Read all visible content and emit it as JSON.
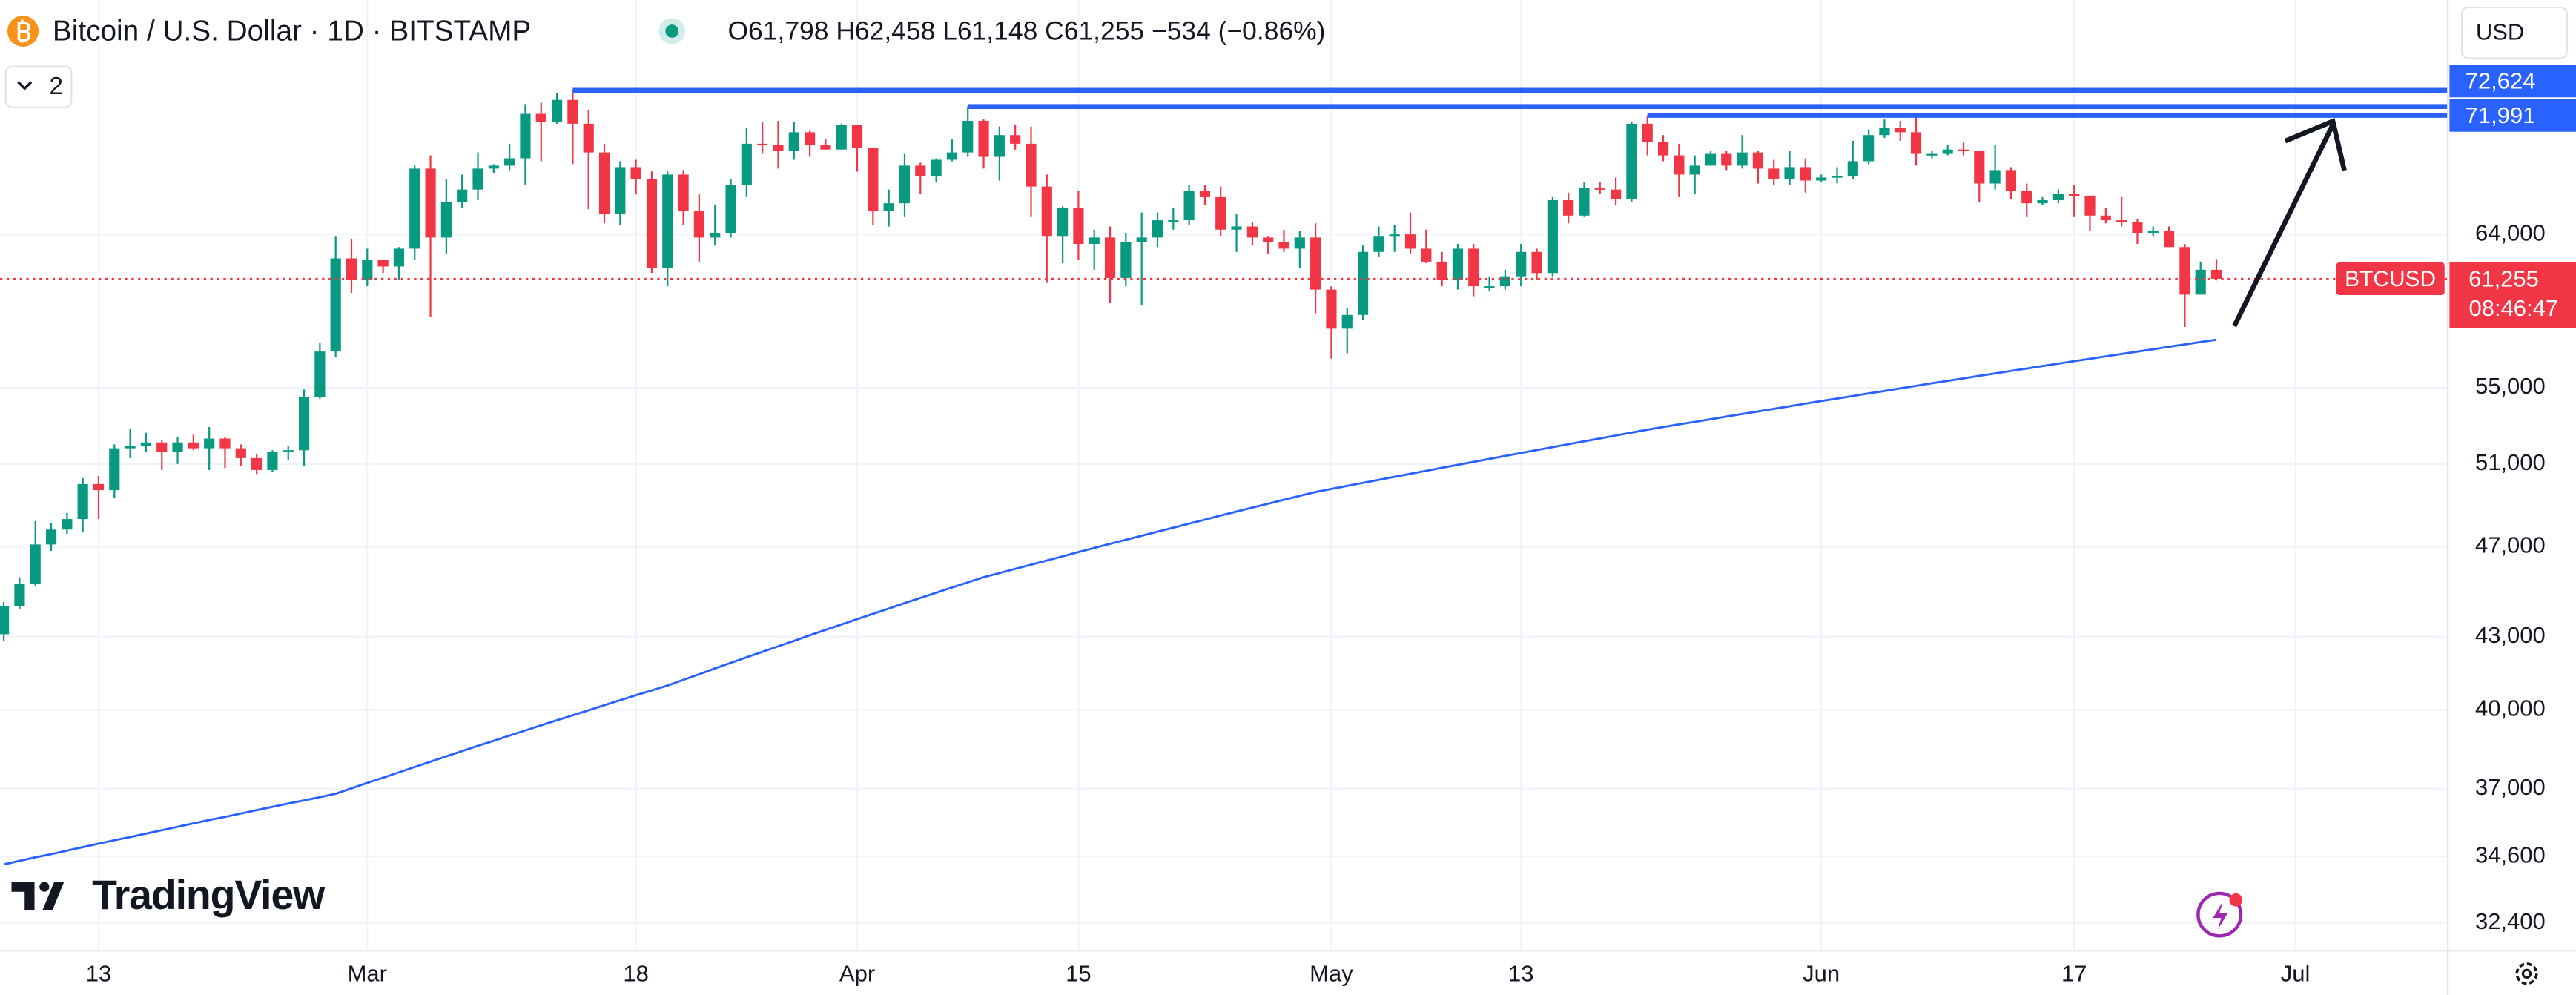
{
  "chart_data": {
    "type": "candlestick",
    "title": "Bitcoin / U.S. Dollar · 1D · BITSTAMP",
    "ohlc_text": "O61,798 H62,458 L61,148 C61,255 −534 (−0.86%)",
    "log": true,
    "grid": true,
    "up_color": "#089981",
    "down_color": "#f23645",
    "ylim": [
      31520,
      80690
    ],
    "yticks": [
      {
        "value": 32400,
        "label": "32,400"
      },
      {
        "value": 34600,
        "label": "34,600"
      },
      {
        "value": 37000,
        "label": "37,000"
      },
      {
        "value": 40000,
        "label": "40,000"
      },
      {
        "value": 43000,
        "label": "43,000"
      },
      {
        "value": 47000,
        "label": "47,000"
      },
      {
        "value": 51000,
        "label": "51,000"
      },
      {
        "value": 55000,
        "label": "55,000"
      },
      {
        "value": 64000,
        "label": "64,000"
      }
    ],
    "categories": [
      null,
      null,
      null,
      null,
      null,
      null,
      "13",
      null,
      null,
      null,
      null,
      null,
      null,
      null,
      null,
      null,
      null,
      null,
      null,
      null,
      null,
      null,
      null,
      "Mar",
      null,
      null,
      null,
      null,
      null,
      null,
      null,
      null,
      null,
      null,
      null,
      null,
      null,
      null,
      null,
      null,
      "18",
      null,
      null,
      null,
      null,
      null,
      null,
      null,
      null,
      null,
      null,
      null,
      null,
      null,
      "Apr",
      null,
      null,
      null,
      null,
      null,
      null,
      null,
      null,
      null,
      null,
      null,
      null,
      null,
      "15",
      null,
      null,
      null,
      null,
      null,
      null,
      null,
      null,
      null,
      null,
      null,
      null,
      null,
      null,
      null,
      "May",
      null,
      null,
      null,
      null,
      null,
      null,
      null,
      null,
      null,
      null,
      null,
      "13",
      null,
      null,
      null,
      null,
      null,
      null,
      null,
      null,
      null,
      null,
      null,
      null,
      null,
      null,
      null,
      null,
      null,
      null,
      "Jun",
      null,
      null,
      null,
      null,
      null,
      null,
      null,
      null,
      null,
      null,
      null,
      null,
      null,
      null,
      null,
      "17",
      null,
      null,
      null,
      null,
      null,
      null,
      null,
      null,
      null,
      null,
      null,
      null,
      null,
      "Jul"
    ],
    "ohlc": [
      [
        43100,
        44500,
        42800,
        44300
      ],
      [
        44300,
        45600,
        44200,
        45300
      ],
      [
        45300,
        48200,
        45200,
        47100
      ],
      [
        47100,
        48100,
        46800,
        47800
      ],
      [
        47800,
        48600,
        47600,
        48300
      ],
      [
        48300,
        50300,
        47700,
        50000
      ],
      [
        50000,
        50400,
        48300,
        49700
      ],
      [
        49700,
        52000,
        49300,
        51800
      ],
      [
        51800,
        52800,
        51300,
        51900
      ],
      [
        51900,
        52600,
        51600,
        52100
      ],
      [
        52100,
        52200,
        50700,
        51600
      ],
      [
        51600,
        52400,
        51000,
        52100
      ],
      [
        52100,
        52500,
        51700,
        51800
      ],
      [
        51800,
        52900,
        50700,
        52300
      ],
      [
        52300,
        52400,
        50800,
        51800
      ],
      [
        51800,
        52000,
        50900,
        51300
      ],
      [
        51300,
        51500,
        50500,
        50700
      ],
      [
        50700,
        51700,
        50600,
        51600
      ],
      [
        51600,
        51900,
        51200,
        51700
      ],
      [
        51700,
        54900,
        50900,
        54500
      ],
      [
        54500,
        57500,
        54400,
        57000
      ],
      [
        57000,
        63900,
        56700,
        62500
      ],
      [
        62500,
        63700,
        60400,
        61200
      ],
      [
        61200,
        63100,
        60800,
        62400
      ],
      [
        62400,
        62400,
        61600,
        62000
      ],
      [
        62000,
        63200,
        61200,
        63100
      ],
      [
        63100,
        68500,
        62400,
        68300
      ],
      [
        68300,
        69200,
        59000,
        63800
      ],
      [
        63800,
        67600,
        62800,
        66100
      ],
      [
        66100,
        67900,
        65700,
        66900
      ],
      [
        66900,
        69400,
        66200,
        68300
      ],
      [
        68300,
        68600,
        68000,
        68500
      ],
      [
        68500,
        70000,
        68200,
        69000
      ],
      [
        69000,
        72800,
        67200,
        72100
      ],
      [
        72100,
        72900,
        68800,
        71500
      ],
      [
        71500,
        73600,
        71400,
        73100
      ],
      [
        73100,
        73800,
        68600,
        71400
      ],
      [
        71400,
        72400,
        65600,
        69400
      ],
      [
        69400,
        70000,
        64700,
        65300
      ],
      [
        65300,
        68800,
        64600,
        68400
      ],
      [
        68400,
        68900,
        66600,
        67600
      ],
      [
        67600,
        68100,
        61600,
        61900
      ],
      [
        61900,
        68100,
        60800,
        67900
      ],
      [
        67900,
        68200,
        64600,
        65500
      ],
      [
        65500,
        66600,
        62300,
        63800
      ],
      [
        63800,
        65900,
        63300,
        64100
      ],
      [
        64100,
        67600,
        63800,
        67200
      ],
      [
        67200,
        71100,
        66400,
        70000
      ],
      [
        70000,
        71500,
        69300,
        69900
      ],
      [
        69900,
        71600,
        68300,
        69500
      ],
      [
        69500,
        71500,
        68900,
        70800
      ],
      [
        70800,
        70900,
        69100,
        69900
      ],
      [
        69900,
        70300,
        69600,
        69600
      ],
      [
        69600,
        71400,
        69600,
        71300
      ],
      [
        71300,
        71300,
        68100,
        69700
      ],
      [
        69700,
        69700,
        64600,
        65500
      ],
      [
        65500,
        66900,
        64500,
        66000
      ],
      [
        66000,
        69300,
        65100,
        68500
      ],
      [
        68500,
        68700,
        66600,
        67800
      ],
      [
        67800,
        69000,
        67400,
        68900
      ],
      [
        68900,
        70300,
        68800,
        69400
      ],
      [
        69400,
        72624,
        69100,
        71600
      ],
      [
        71600,
        71700,
        68300,
        69100
      ],
      [
        69100,
        71200,
        67500,
        70600
      ],
      [
        70600,
        71300,
        69600,
        70000
      ],
      [
        70000,
        71200,
        65100,
        67100
      ],
      [
        67100,
        67900,
        61000,
        63900
      ],
      [
        63900,
        65800,
        62200,
        65700
      ],
      [
        65700,
        66800,
        62400,
        63400
      ],
      [
        63400,
        64300,
        61800,
        63800
      ],
      [
        63800,
        64500,
        59800,
        61300
      ],
      [
        61300,
        64100,
        60800,
        63500
      ],
      [
        63500,
        65400,
        59700,
        63800
      ],
      [
        63800,
        65400,
        63200,
        64900
      ],
      [
        64900,
        65700,
        64300,
        64900
      ],
      [
        64900,
        67200,
        64600,
        66800
      ],
      [
        66800,
        67200,
        65900,
        66400
      ],
      [
        66400,
        67100,
        63900,
        64300
      ],
      [
        64300,
        65300,
        62900,
        64500
      ],
      [
        64500,
        64800,
        63300,
        63800
      ],
      [
        63800,
        63900,
        62800,
        63500
      ],
      [
        63500,
        64300,
        62900,
        63100
      ],
      [
        63100,
        64200,
        61900,
        63800
      ],
      [
        63800,
        64700,
        59200,
        60600
      ],
      [
        60600,
        60800,
        56600,
        58300
      ],
      [
        58300,
        59500,
        56900,
        59100
      ],
      [
        59100,
        63300,
        58800,
        62900
      ],
      [
        62900,
        64500,
        62600,
        63900
      ],
      [
        63900,
        64600,
        62900,
        64000
      ],
      [
        64000,
        65400,
        62800,
        63100
      ],
      [
        63100,
        64300,
        62200,
        62300
      ],
      [
        62300,
        62900,
        60800,
        61200
      ],
      [
        61200,
        63400,
        60600,
        63100
      ],
      [
        63100,
        63400,
        60200,
        60800
      ],
      [
        60800,
        61400,
        60500,
        60800
      ],
      [
        60800,
        61800,
        60600,
        61400
      ],
      [
        61400,
        63400,
        60800,
        62900
      ],
      [
        62900,
        63100,
        61200,
        61600
      ],
      [
        61600,
        66400,
        61400,
        66200
      ],
      [
        66200,
        66700,
        64700,
        65200
      ],
      [
        65200,
        67400,
        65100,
        67000
      ],
      [
        67000,
        67400,
        66600,
        66900
      ],
      [
        66900,
        67700,
        65900,
        66300
      ],
      [
        66300,
        71500,
        66100,
        71400
      ],
      [
        71400,
        71991,
        69200,
        70100
      ],
      [
        70100,
        70600,
        68800,
        69200
      ],
      [
        69200,
        70000,
        66400,
        67900
      ],
      [
        67900,
        69200,
        66600,
        68500
      ],
      [
        68500,
        69500,
        68500,
        69300
      ],
      [
        69300,
        69500,
        68200,
        68500
      ],
      [
        68500,
        70600,
        68300,
        69400
      ],
      [
        69400,
        69500,
        67300,
        68300
      ],
      [
        68300,
        68900,
        67200,
        67600
      ],
      [
        67600,
        69500,
        67200,
        68400
      ],
      [
        68400,
        69000,
        66700,
        67500
      ],
      [
        67500,
        67900,
        67400,
        67700
      ],
      [
        67700,
        68400,
        67300,
        67800
      ],
      [
        67800,
        70200,
        67600,
        68800
      ],
      [
        68800,
        71000,
        68600,
        70600
      ],
      [
        70600,
        71700,
        70400,
        71100
      ],
      [
        71100,
        71600,
        70200,
        70800
      ],
      [
        70800,
        71900,
        68500,
        69300
      ],
      [
        69300,
        69500,
        69000,
        69300
      ],
      [
        69300,
        69900,
        69200,
        69600
      ],
      [
        69600,
        70100,
        69200,
        69500
      ],
      [
        69500,
        69500,
        66100,
        67300
      ],
      [
        67300,
        69900,
        66900,
        68200
      ],
      [
        68200,
        68400,
        66300,
        66800
      ],
      [
        66800,
        67300,
        65100,
        66000
      ],
      [
        66000,
        66400,
        65900,
        66200
      ],
      [
        66200,
        66900,
        66000,
        66600
      ],
      [
        66600,
        67200,
        65100,
        66500
      ],
      [
        66500,
        66500,
        64200,
        65200
      ],
      [
        65200,
        65700,
        64700,
        64900
      ],
      [
        64900,
        66400,
        64500,
        64800
      ],
      [
        64800,
        65000,
        63400,
        64100
      ],
      [
        64100,
        64500,
        63900,
        64200
      ],
      [
        64200,
        64500,
        63200,
        63200
      ],
      [
        63200,
        63400,
        58400,
        60300
      ],
      [
        60300,
        62300,
        60300,
        61800
      ],
      [
        61798,
        62458,
        61148,
        61255
      ],
      null,
      null,
      null,
      null,
      null
    ],
    "ma": {
      "color": "#2962ff",
      "values": [
        34330,
        34450,
        34570,
        34680,
        34800,
        34920,
        35040,
        35160,
        35270,
        35390,
        35510,
        35630,
        35750,
        35870,
        35980,
        36100,
        36220,
        36340,
        36460,
        36570,
        36690,
        36810,
        37010,
        37210,
        37400,
        37600,
        37800,
        38000,
        38200,
        38400,
        38600,
        38790,
        38990,
        39190,
        39390,
        39590,
        39780,
        39980,
        40180,
        40380,
        40580,
        40770,
        40970,
        41200,
        41430,
        41670,
        41900,
        42130,
        42360,
        42590,
        42820,
        43060,
        43290,
        43520,
        43750,
        43980,
        44210,
        44450,
        44680,
        44910,
        45140,
        45370,
        45600,
        45790,
        45980,
        46170,
        46360,
        46550,
        46750,
        46940,
        47130,
        47320,
        47510,
        47700,
        47890,
        48080,
        48270,
        48470,
        48660,
        48850,
        49040,
        49230,
        49420,
        49610,
        49760,
        49910,
        50060,
        50210,
        50360,
        50510,
        50660,
        50810,
        50960,
        51110,
        51260,
        51410,
        51560,
        51710,
        51860,
        52010,
        52160,
        52310,
        52460,
        52610,
        52760,
        52900,
        53040,
        53170,
        53310,
        53450,
        53590,
        53720,
        53860,
        54000,
        54140,
        54280,
        54410,
        54550,
        54690,
        54820,
        54960,
        55100,
        55240,
        55370,
        55510,
        55650,
        55780,
        55920,
        56050,
        56190,
        56320,
        56460,
        56590,
        56730,
        56860,
        57000,
        57130,
        57270,
        57400,
        57540,
        57670,
        null,
        null,
        null,
        null,
        null
      ]
    },
    "levels_color": "#2962ff",
    "levels": [
      {
        "value": 73800,
        "label": null
      },
      {
        "value": 72624,
        "label": "72,624"
      },
      {
        "value": 71991,
        "label": "71,991"
      }
    ],
    "last_price": {
      "value": 61255,
      "label": "61,255",
      "symbol": "BTCUSD",
      "countdown": "08:46:47",
      "color": "#f23645"
    }
  },
  "ui": {
    "currency": "USD",
    "indicators": "2",
    "brand": "TradingView"
  }
}
